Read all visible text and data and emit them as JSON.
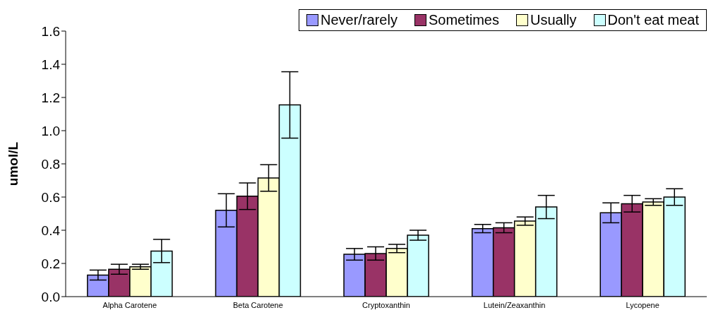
{
  "chart_data": {
    "type": "bar",
    "ylabel": "umol/L",
    "categories": [
      "Alpha Carotene",
      "Beta Carotene",
      "Cryptoxanthin",
      "Lutein/Zeaxanthin",
      "Lycopene"
    ],
    "series": [
      {
        "name": "Never/rarely",
        "color": "#9999ff",
        "values": [
          0.13,
          0.52,
          0.255,
          0.41,
          0.505
        ],
        "errors": [
          0.03,
          0.1,
          0.035,
          0.025,
          0.06
        ]
      },
      {
        "name": "Sometimes",
        "color": "#993366",
        "values": [
          0.165,
          0.605,
          0.26,
          0.415,
          0.56
        ],
        "errors": [
          0.03,
          0.08,
          0.04,
          0.03,
          0.05
        ]
      },
      {
        "name": "Usually",
        "color": "#ffffcc",
        "values": [
          0.18,
          0.715,
          0.29,
          0.455,
          0.57
        ],
        "errors": [
          0.015,
          0.08,
          0.025,
          0.025,
          0.02
        ]
      },
      {
        "name": "Don't eat meat",
        "color": "#ccffff",
        "values": [
          0.275,
          1.155,
          0.37,
          0.54,
          0.6
        ],
        "errors": [
          0.07,
          0.2,
          0.03,
          0.07,
          0.05
        ]
      }
    ],
    "ylim": [
      0,
      1.6
    ],
    "yticks": [
      {
        "value": 0,
        "label": "0.0"
      },
      {
        "value": 0.2,
        "label": "0.2"
      },
      {
        "value": 0.4,
        "label": "0.4"
      },
      {
        "value": 0.6,
        "label": "0.6"
      },
      {
        "value": 0.8,
        "label": "0.8"
      },
      {
        "value": 1,
        "label": "1.0"
      },
      {
        "value": 1.2,
        "label": "1.2"
      },
      {
        "value": 1.4,
        "label": "1.4"
      },
      {
        "value": 1.6,
        "label": "1.6"
      }
    ],
    "grid": false,
    "legend": "top right"
  }
}
